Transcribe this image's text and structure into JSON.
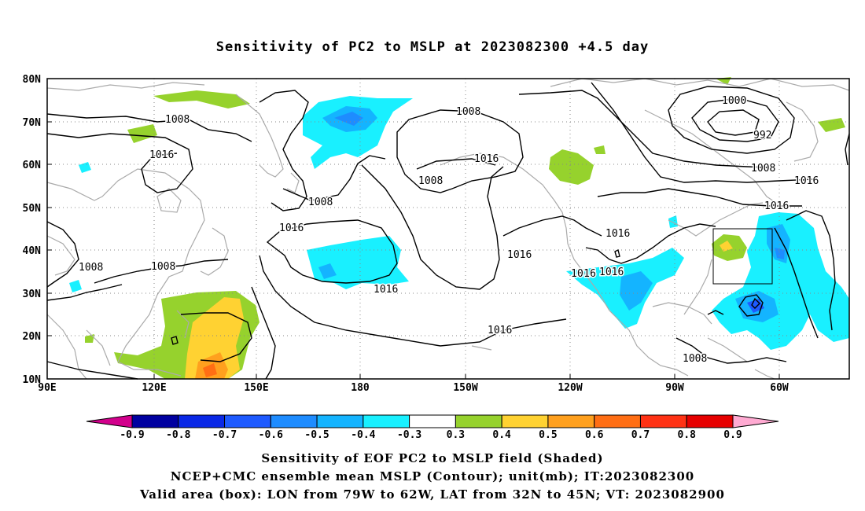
{
  "title": "Sensitivity of PC2 to MSLP at 2023082300 +4.5 day",
  "map": {
    "lat_labels": [
      "80N",
      "70N",
      "60N",
      "50N",
      "40N",
      "30N",
      "20N",
      "10N"
    ],
    "lon_labels": [
      "90E",
      "120E",
      "150E",
      "180",
      "150W",
      "120W",
      "90W",
      "60W"
    ],
    "box": {
      "lon_from": "79W",
      "lon_to": "62W",
      "lat_from": "32N",
      "lat_to": "45N"
    },
    "contour_labels": [
      "1008",
      "1008",
      "1016",
      "1008",
      "1008",
      "1008",
      "1016",
      "1016",
      "1016",
      "1016",
      "1016",
      "1008",
      "1000",
      "992",
      "1008",
      "1016",
      "1016",
      "1016",
      "1016",
      "1016",
      "1016",
      "1008",
      "1008"
    ]
  },
  "colorbar": {
    "labels": [
      "-0.9",
      "-0.8",
      "-0.7",
      "-0.6",
      "-0.5",
      "-0.4",
      "-0.3",
      "0.3",
      "0.4",
      "0.5",
      "0.6",
      "0.7",
      "0.8",
      "0.9"
    ],
    "colors": [
      "#0000a0",
      "#0a28e6",
      "#1e5aff",
      "#1e8cff",
      "#14b4ff",
      "#19f0ff",
      "#ffffff",
      "#96d22d",
      "#ffd232",
      "#ffa01e",
      "#ff6e14",
      "#ff3214",
      "#e60000"
    ],
    "low_end_color": "#d2008c",
    "high_end_color": "#ffaad2"
  },
  "caption": {
    "line1": "Sensitivity of EOF PC2 to MSLP field (Shaded)",
    "line2": "NCEP+CMC ensemble mean MSLP (Contour); unit(mb); IT:2023082300",
    "line3": "Valid area (box): LON from 79W to 62W, LAT from 32N to 45N; VT: 2023082900"
  }
}
